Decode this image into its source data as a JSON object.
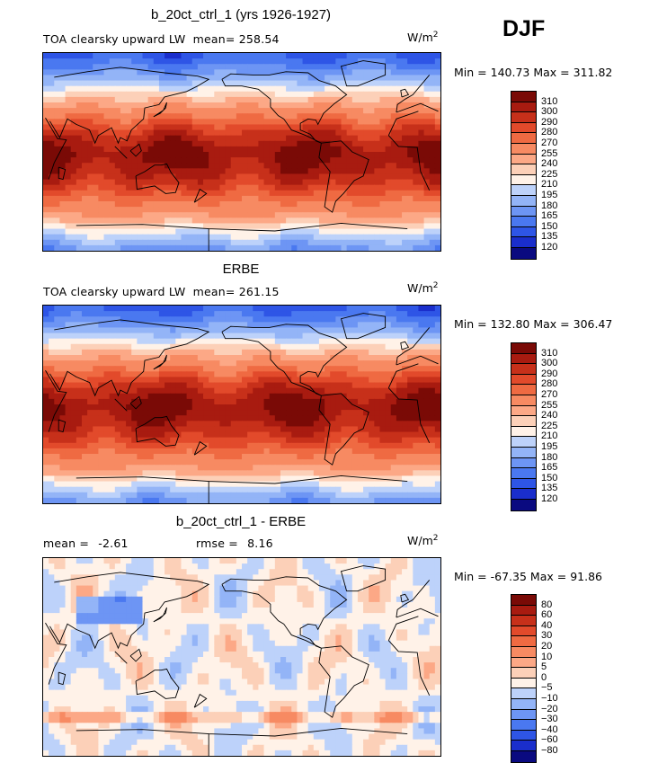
{
  "season": "DJF",
  "units_base": "W/m",
  "units_exp": "2",
  "panels": [
    {
      "title": "b_20ct_ctrl_1 (yrs 1926-1927)",
      "subtitle": "TOA clearsky upward LW",
      "stat_label": "mean=",
      "stat_value": "258.54",
      "min_label": "Min =",
      "min_value": "140.73",
      "max_label": "Max =",
      "max_value": "311.82"
    },
    {
      "title": "ERBE",
      "subtitle": "TOA clearsky upward LW",
      "stat_label": "mean=",
      "stat_value": "261.15",
      "min_label": "Min =",
      "min_value": "132.80",
      "max_label": "Max =",
      "max_value": "306.47"
    },
    {
      "title": "b_20ct_ctrl_1 - ERBE",
      "stat_label": "mean =",
      "stat_value": "-2.61",
      "rmse_label": "rmse =",
      "rmse_value": "8.16",
      "min_label": "Min =",
      "min_value": "-67.35",
      "max_label": "Max =",
      "max_value": "91.86"
    }
  ],
  "chart_data": [
    {
      "type": "heatmap",
      "title": "b_20ct_ctrl_1 (yrs 1926-1927)",
      "variable": "TOA clearsky upward LW",
      "units": "W/m2",
      "mean": 258.54,
      "min": 140.73,
      "max": 311.82,
      "colorbar_levels": [
        120,
        135,
        150,
        165,
        180,
        195,
        210,
        225,
        240,
        255,
        270,
        280,
        290,
        300,
        310
      ],
      "colors": [
        "#0a0a80",
        "#1a2ecc",
        "#2e55e6",
        "#4a78f0",
        "#6d95f4",
        "#93b4f7",
        "#bdd2fa",
        "#fff2e8",
        "#fcd0b8",
        "#fca886",
        "#f78a62",
        "#ef6a42",
        "#e24a2b",
        "#c7301a",
        "#a81b10",
        "#7a0a06"
      ]
    },
    {
      "type": "heatmap",
      "title": "ERBE",
      "variable": "TOA clearsky upward LW",
      "units": "W/m2",
      "mean": 261.15,
      "min": 132.8,
      "max": 306.47,
      "colorbar_levels": [
        120,
        135,
        150,
        165,
        180,
        195,
        210,
        225,
        240,
        255,
        270,
        280,
        290,
        300,
        310
      ],
      "colors": [
        "#0a0a80",
        "#1a2ecc",
        "#2e55e6",
        "#4a78f0",
        "#6d95f4",
        "#93b4f7",
        "#bdd2fa",
        "#fff2e8",
        "#fcd0b8",
        "#fca886",
        "#f78a62",
        "#ef6a42",
        "#e24a2b",
        "#c7301a",
        "#a81b10",
        "#7a0a06"
      ]
    },
    {
      "type": "heatmap",
      "title": "b_20ct_ctrl_1 - ERBE",
      "units": "W/m2",
      "mean": -2.61,
      "rmse": 8.16,
      "min": -67.35,
      "max": 91.86,
      "colorbar_levels": [
        -80,
        -60,
        -40,
        -30,
        -20,
        -10,
        -5,
        0,
        5,
        10,
        20,
        30,
        40,
        60,
        80
      ],
      "colors": [
        "#0a0a80",
        "#1a2ecc",
        "#2e55e6",
        "#4a78f0",
        "#6d95f4",
        "#93b4f7",
        "#bdd2fa",
        "#fff2e8",
        "#fcd0b8",
        "#fca886",
        "#f78a62",
        "#ef6a42",
        "#e24a2b",
        "#c7301a",
        "#a81b10",
        "#7a0a06"
      ]
    }
  ]
}
